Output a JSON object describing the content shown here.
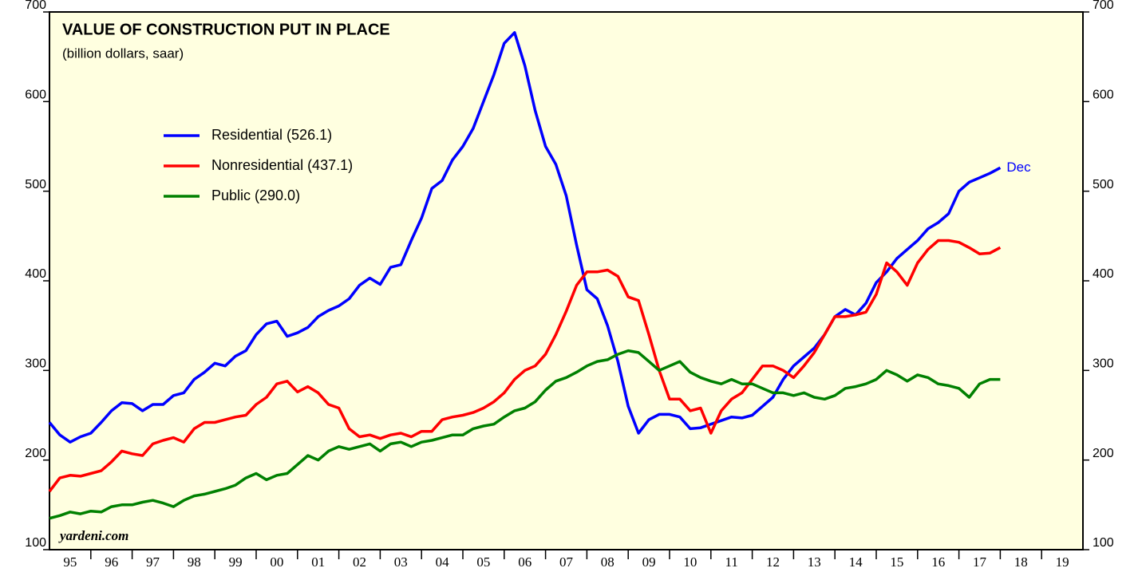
{
  "chart_data": {
    "type": "line",
    "title": "VALUE OF CONSTRUCTION PUT IN PLACE",
    "subtitle": "(billion dollars, saar)",
    "annotation": "Dec",
    "source": "yardeni.com",
    "xlim": [
      1995,
      2020
    ],
    "xticks": [
      {
        "value": 1995.5,
        "label": "95"
      },
      {
        "value": 1996.5,
        "label": "96"
      },
      {
        "value": 1997.5,
        "label": "97"
      },
      {
        "value": 1998.5,
        "label": "98"
      },
      {
        "value": 1999.5,
        "label": "99"
      },
      {
        "value": 2000.5,
        "label": "00"
      },
      {
        "value": 2001.5,
        "label": "01"
      },
      {
        "value": 2002.5,
        "label": "02"
      },
      {
        "value": 2003.5,
        "label": "03"
      },
      {
        "value": 2004.5,
        "label": "04"
      },
      {
        "value": 2005.5,
        "label": "05"
      },
      {
        "value": 2006.5,
        "label": "06"
      },
      {
        "value": 2007.5,
        "label": "07"
      },
      {
        "value": 2008.5,
        "label": "08"
      },
      {
        "value": 2009.5,
        "label": "09"
      },
      {
        "value": 2010.5,
        "label": "10"
      },
      {
        "value": 2011.5,
        "label": "11"
      },
      {
        "value": 2012.5,
        "label": "12"
      },
      {
        "value": 2013.5,
        "label": "13"
      },
      {
        "value": 2014.5,
        "label": "14"
      },
      {
        "value": 2015.5,
        "label": "15"
      },
      {
        "value": 2016.5,
        "label": "16"
      },
      {
        "value": 2017.5,
        "label": "17"
      },
      {
        "value": 2018.5,
        "label": "18"
      },
      {
        "value": 2019.5,
        "label": "19"
      }
    ],
    "ylim": [
      100,
      700
    ],
    "yticks": [
      100,
      200,
      300,
      400,
      500,
      600,
      700
    ],
    "x": [
      1995,
      1995.25,
      1995.5,
      1995.75,
      1996,
      1996.25,
      1996.5,
      1996.75,
      1997,
      1997.25,
      1997.5,
      1997.75,
      1998,
      1998.25,
      1998.5,
      1998.75,
      1999,
      1999.25,
      1999.5,
      1999.75,
      2000,
      2000.25,
      2000.5,
      2000.75,
      2001,
      2001.25,
      2001.5,
      2001.75,
      2002,
      2002.25,
      2002.5,
      2002.75,
      2003,
      2003.25,
      2003.5,
      2003.75,
      2004,
      2004.25,
      2004.5,
      2004.75,
      2005,
      2005.25,
      2005.5,
      2005.75,
      2006,
      2006.25,
      2006.5,
      2006.75,
      2007,
      2007.25,
      2007.5,
      2007.75,
      2008,
      2008.25,
      2008.5,
      2008.75,
      2009,
      2009.25,
      2009.5,
      2009.75,
      2010,
      2010.25,
      2010.5,
      2010.75,
      2011,
      2011.25,
      2011.5,
      2011.75,
      2012,
      2012.25,
      2012.5,
      2012.75,
      2013,
      2013.25,
      2013.5,
      2013.75,
      2014,
      2014.25,
      2014.5,
      2014.75,
      2015,
      2015.25,
      2015.5,
      2015.75,
      2016,
      2016.25,
      2016.5,
      2016.75,
      2017,
      2017.25,
      2017.5,
      2017.75,
      2018
    ],
    "series": [
      {
        "name": "Residential (526.1)",
        "color": "#0000ff",
        "values": [
          242,
          228,
          220,
          226,
          230,
          242,
          255,
          264,
          263,
          255,
          262,
          262,
          272,
          275,
          290,
          298,
          308,
          305,
          316,
          322,
          340,
          352,
          355,
          338,
          342,
          348,
          360,
          367,
          372,
          380,
          395,
          403,
          396,
          415,
          418,
          445,
          470,
          503,
          512,
          535,
          550,
          570,
          600,
          630,
          665,
          677,
          640,
          590,
          550,
          530,
          495,
          440,
          390,
          380,
          350,
          310,
          260,
          230,
          245,
          251,
          251,
          248,
          235,
          236,
          240,
          244,
          248,
          247,
          250,
          260,
          270,
          290,
          305,
          315,
          325,
          340,
          360,
          368,
          362,
          375,
          398,
          410,
          425,
          435,
          445,
          458,
          465,
          475,
          500,
          510,
          515,
          520,
          526.1
        ]
      },
      {
        "name": "Nonresidential (437.1)",
        "color": "#ff0000",
        "values": [
          165,
          180,
          183,
          182,
          185,
          188,
          198,
          210,
          207,
          205,
          218,
          222,
          225,
          220,
          235,
          242,
          242,
          245,
          248,
          250,
          262,
          270,
          285,
          288,
          276,
          282,
          275,
          262,
          258,
          235,
          226,
          228,
          224,
          228,
          230,
          226,
          232,
          232,
          245,
          248,
          250,
          253,
          258,
          265,
          275,
          290,
          300,
          305,
          318,
          340,
          366,
          395,
          410,
          410,
          412,
          405,
          382,
          378,
          340,
          300,
          268,
          268,
          255,
          258,
          230,
          255,
          268,
          275,
          290,
          305,
          305,
          300,
          292,
          305,
          320,
          340,
          360,
          360,
          362,
          365,
          385,
          420,
          410,
          395,
          420,
          435,
          445,
          445,
          443,
          437,
          430,
          431,
          437.1
        ]
      },
      {
        "name": "Public (290.0)",
        "color": "#008000",
        "values": [
          135,
          138,
          142,
          140,
          143,
          142,
          148,
          150,
          150,
          153,
          155,
          152,
          148,
          155,
          160,
          162,
          165,
          168,
          172,
          180,
          185,
          178,
          183,
          185,
          195,
          205,
          200,
          210,
          215,
          212,
          215,
          218,
          210,
          218,
          220,
          215,
          220,
          222,
          225,
          228,
          228,
          235,
          238,
          240,
          248,
          255,
          258,
          265,
          278,
          288,
          292,
          298,
          305,
          310,
          312,
          318,
          322,
          320,
          310,
          300,
          305,
          310,
          298,
          292,
          288,
          285,
          290,
          285,
          285,
          280,
          275,
          275,
          272,
          275,
          270,
          268,
          272,
          280,
          282,
          285,
          290,
          300,
          295,
          288,
          295,
          292,
          285,
          283,
          280,
          270,
          285,
          290,
          290.0
        ]
      }
    ]
  }
}
